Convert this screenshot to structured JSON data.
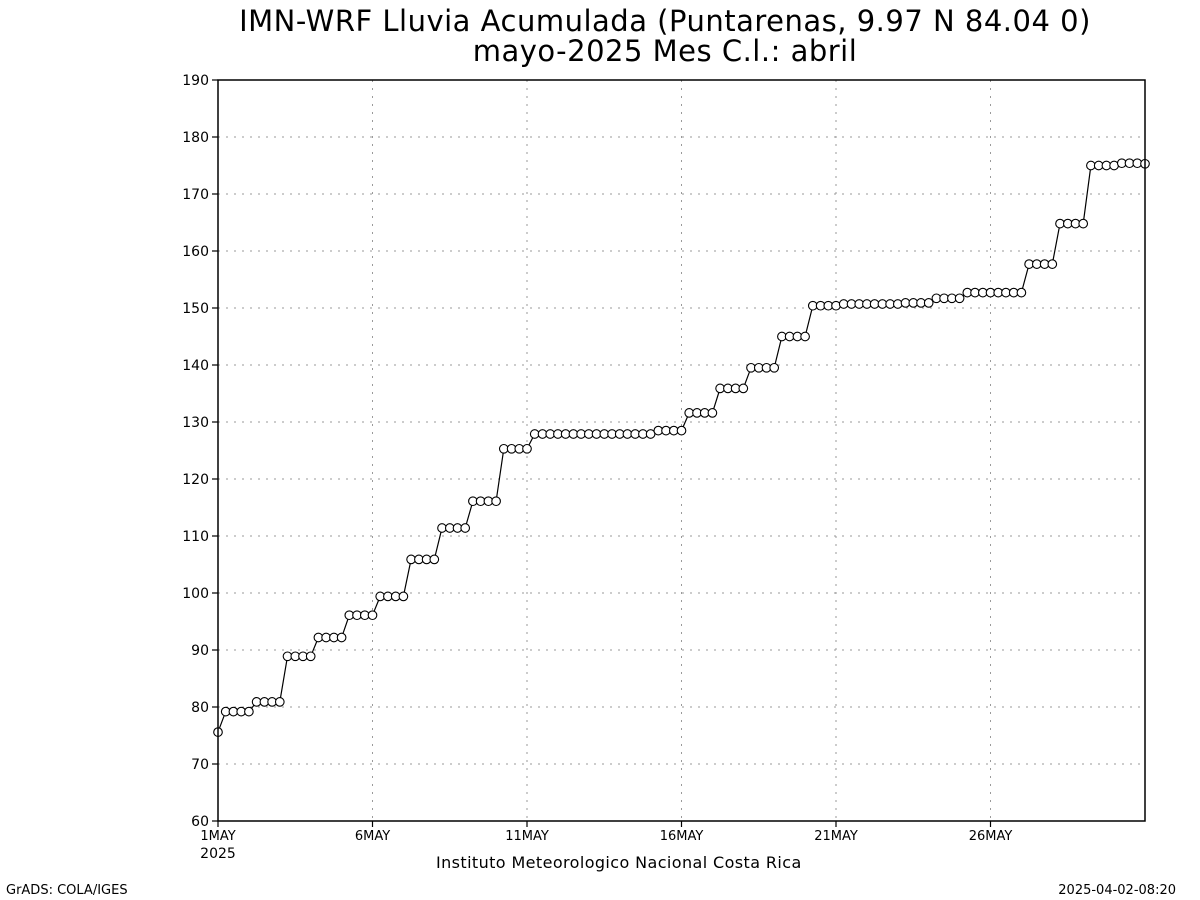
{
  "title_line1": "IMN-WRF  Lluvia Acumulada (Puntarenas, 9.97  N 84.04  0)",
  "title_line2": "mayo-2025 Mes C.l.: abril",
  "footer_center": "Instituto Meteorologico Nacional Costa Rica",
  "footer_left": "GrADS: COLA/IGES",
  "footer_right": "2025-04-02-08:20",
  "chart_data": {
    "type": "line",
    "title": "IMN-WRF  Lluvia Acumulada (Puntarenas, 9.97  N 84.04  0)",
    "subtitle": "mayo-2025 Mes C.l.: abril",
    "xlabel": "",
    "ylabel": "",
    "xlim": [
      "2025-05-01",
      "2025-05-31"
    ],
    "ylim": [
      60,
      190
    ],
    "y_ticks": [
      60,
      70,
      80,
      90,
      100,
      110,
      120,
      130,
      140,
      150,
      160,
      170,
      180,
      190
    ],
    "x_ticks": [
      {
        "date": "2025-05-01",
        "label": "1MAY",
        "label2": "2025"
      },
      {
        "date": "2025-05-06",
        "label": "6MAY"
      },
      {
        "date": "2025-05-11",
        "label": "11MAY"
      },
      {
        "date": "2025-05-16",
        "label": "16MAY"
      },
      {
        "date": "2025-05-21",
        "label": "21MAY"
      },
      {
        "date": "2025-05-26",
        "label": "26MAY"
      }
    ],
    "grid": true,
    "marker": "open-circle",
    "line_color": "#000000",
    "interval_hours": 6,
    "series": [
      {
        "x": [
          "2025-05-01T00:00",
          "2025-05-01T06:00",
          "2025-05-01T12:00",
          "2025-05-01T18:00",
          "2025-05-02T00:00",
          "2025-05-02T06:00",
          "2025-05-02T12:00",
          "2025-05-02T18:00",
          "2025-05-03T00:00",
          "2025-05-03T06:00",
          "2025-05-03T12:00",
          "2025-05-03T18:00",
          "2025-05-04T00:00",
          "2025-05-04T06:00",
          "2025-05-04T12:00",
          "2025-05-04T18:00",
          "2025-05-05T00:00",
          "2025-05-05T06:00",
          "2025-05-05T12:00",
          "2025-05-05T18:00",
          "2025-05-06T00:00",
          "2025-05-06T06:00",
          "2025-05-06T12:00",
          "2025-05-06T18:00",
          "2025-05-07T00:00",
          "2025-05-07T06:00",
          "2025-05-07T12:00",
          "2025-05-07T18:00",
          "2025-05-08T00:00",
          "2025-05-08T06:00",
          "2025-05-08T12:00",
          "2025-05-08T18:00",
          "2025-05-09T00:00",
          "2025-05-09T06:00",
          "2025-05-09T12:00",
          "2025-05-09T18:00",
          "2025-05-10T00:00",
          "2025-05-10T06:00",
          "2025-05-10T12:00",
          "2025-05-10T18:00",
          "2025-05-11T00:00",
          "2025-05-11T06:00",
          "2025-05-11T12:00",
          "2025-05-11T18:00",
          "2025-05-12T00:00",
          "2025-05-12T06:00",
          "2025-05-12T12:00",
          "2025-05-12T18:00",
          "2025-05-13T00:00",
          "2025-05-13T06:00",
          "2025-05-13T12:00",
          "2025-05-13T18:00",
          "2025-05-14T00:00",
          "2025-05-14T06:00",
          "2025-05-14T12:00",
          "2025-05-14T18:00",
          "2025-05-15T00:00",
          "2025-05-15T06:00",
          "2025-05-15T12:00",
          "2025-05-15T18:00",
          "2025-05-16T00:00",
          "2025-05-16T06:00",
          "2025-05-16T12:00",
          "2025-05-16T18:00",
          "2025-05-17T00:00",
          "2025-05-17T06:00",
          "2025-05-17T12:00",
          "2025-05-17T18:00",
          "2025-05-18T00:00",
          "2025-05-18T06:00",
          "2025-05-18T12:00",
          "2025-05-18T18:00",
          "2025-05-19T00:00",
          "2025-05-19T06:00",
          "2025-05-19T12:00",
          "2025-05-19T18:00",
          "2025-05-20T00:00",
          "2025-05-20T06:00",
          "2025-05-20T12:00",
          "2025-05-20T18:00",
          "2025-05-21T00:00",
          "2025-05-21T06:00",
          "2025-05-21T12:00",
          "2025-05-21T18:00",
          "2025-05-22T00:00",
          "2025-05-22T06:00",
          "2025-05-22T12:00",
          "2025-05-22T18:00",
          "2025-05-23T00:00",
          "2025-05-23T06:00",
          "2025-05-23T12:00",
          "2025-05-23T18:00",
          "2025-05-24T00:00",
          "2025-05-24T06:00",
          "2025-05-24T12:00",
          "2025-05-24T18:00",
          "2025-05-25T00:00",
          "2025-05-25T06:00",
          "2025-05-25T12:00",
          "2025-05-25T18:00",
          "2025-05-26T00:00",
          "2025-05-26T06:00",
          "2025-05-26T12:00",
          "2025-05-26T18:00",
          "2025-05-27T00:00",
          "2025-05-27T06:00",
          "2025-05-27T12:00",
          "2025-05-27T18:00",
          "2025-05-28T00:00",
          "2025-05-28T06:00",
          "2025-05-28T12:00",
          "2025-05-28T18:00",
          "2025-05-29T00:00",
          "2025-05-29T06:00",
          "2025-05-29T12:00",
          "2025-05-29T18:00",
          "2025-05-30T00:00",
          "2025-05-30T06:00",
          "2025-05-30T12:00",
          "2025-05-30T18:00",
          "2025-05-31T00:00"
        ],
        "values": [
          75.6,
          79.2,
          79.2,
          79.2,
          79.2,
          80.9,
          80.9,
          80.9,
          80.9,
          88.9,
          88.9,
          88.9,
          88.9,
          92.2,
          92.2,
          92.2,
          92.2,
          96.1,
          96.1,
          96.1,
          96.1,
          99.4,
          99.4,
          99.4,
          99.4,
          105.9,
          105.9,
          105.9,
          105.9,
          111.4,
          111.4,
          111.4,
          111.4,
          116.1,
          116.1,
          116.1,
          116.1,
          125.3,
          125.3,
          125.3,
          125.3,
          127.9,
          127.9,
          127.9,
          127.9,
          127.9,
          127.9,
          127.9,
          127.9,
          127.9,
          127.9,
          127.9,
          127.9,
          127.9,
          127.9,
          127.9,
          127.9,
          128.5,
          128.5,
          128.5,
          128.5,
          131.6,
          131.6,
          131.6,
          131.6,
          135.9,
          135.9,
          135.9,
          135.9,
          139.5,
          139.5,
          139.5,
          139.5,
          145.0,
          145.0,
          145.0,
          145.0,
          150.4,
          150.4,
          150.4,
          150.4,
          150.7,
          150.7,
          150.7,
          150.7,
          150.7,
          150.7,
          150.7,
          150.7,
          150.9,
          150.9,
          150.9,
          150.9,
          151.7,
          151.7,
          151.7,
          151.7,
          152.7,
          152.7,
          152.7,
          152.7,
          152.7,
          152.7,
          152.7,
          152.7,
          157.7,
          157.7,
          157.7,
          157.7,
          164.8,
          164.8,
          164.8,
          164.8,
          175.0,
          175.0,
          175.0,
          175.0,
          175.4,
          175.4,
          175.4,
          175.3
        ]
      }
    ]
  }
}
